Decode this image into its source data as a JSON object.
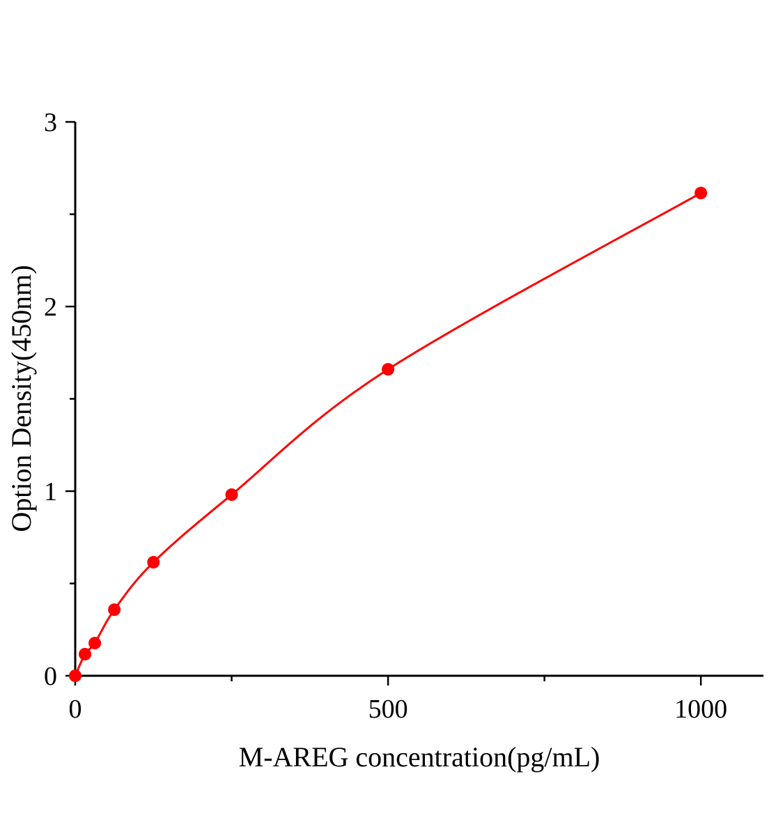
{
  "chart_data": {
    "type": "scatter",
    "title": "",
    "xlabel": "M-AREG concentration(pg/mL)",
    "ylabel": "Option Density(450nm)",
    "xlim": [
      0,
      1100
    ],
    "ylim": [
      0,
      3
    ],
    "x_ticks": [
      0,
      500,
      1000
    ],
    "x_tick_labels": [
      "0",
      "500",
      "1000"
    ],
    "x_minor_ticks": [
      250,
      750
    ],
    "y_ticks": [
      0,
      1,
      2,
      3
    ],
    "y_tick_labels": [
      "0",
      "1",
      "2",
      "3"
    ],
    "y_minor_ticks": [
      0.5,
      1.5,
      2.5
    ],
    "grid": false,
    "color": "#ff0000",
    "series": [
      {
        "x": [
          0,
          15.6,
          31.25,
          62.5,
          125,
          250,
          500,
          1000
        ],
        "y": [
          0.0,
          0.117,
          0.177,
          0.358,
          0.615,
          0.981,
          1.66,
          2.615
        ],
        "line": "fitted-curve",
        "marker": "circle"
      }
    ]
  }
}
